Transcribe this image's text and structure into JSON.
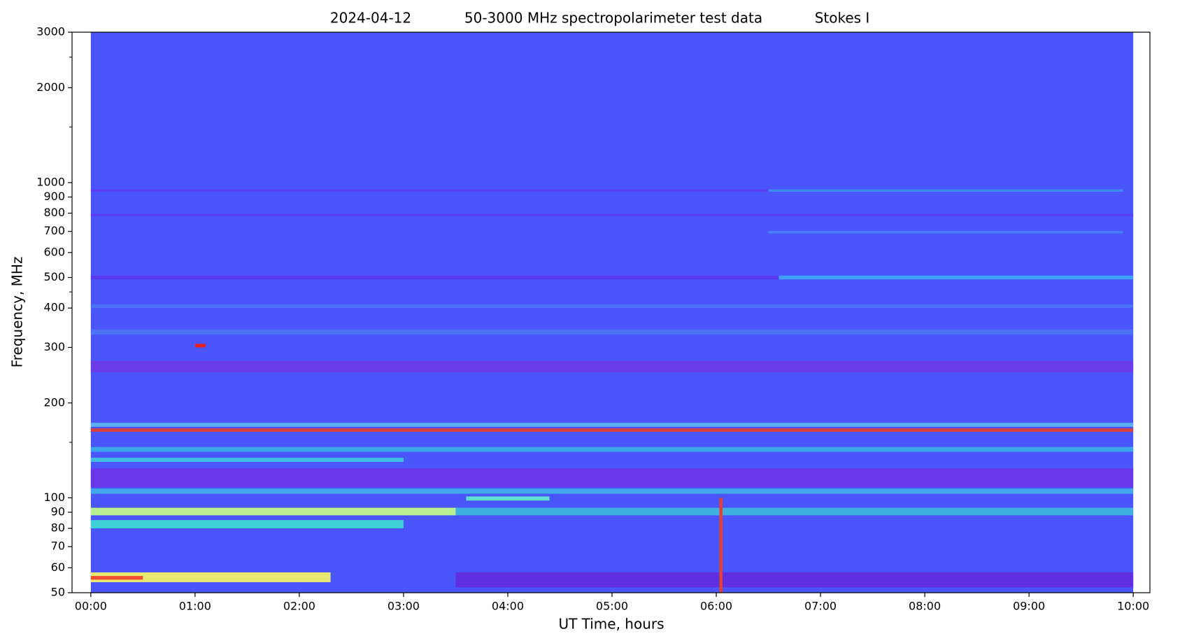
{
  "chart_data": {
    "type": "spectrogram",
    "title": [
      "2024-04-12",
      "50-3000 MHz spectropolarimeter test data",
      "Stokes I"
    ],
    "x_label": "UT Time, hours",
    "y_label": "Frequency, MHz",
    "yscale": "log",
    "xlim": [
      -0.18,
      10.16
    ],
    "ylim": [
      50,
      3000
    ],
    "xticks": [
      {
        "value": 0,
        "label": "00:00"
      },
      {
        "value": 1,
        "label": "01:00"
      },
      {
        "value": 2,
        "label": "02:00"
      },
      {
        "value": 3,
        "label": "03:00"
      },
      {
        "value": 4,
        "label": "04:00"
      },
      {
        "value": 5,
        "label": "05:00"
      },
      {
        "value": 6,
        "label": "06:00"
      },
      {
        "value": 7,
        "label": "07:00"
      },
      {
        "value": 8,
        "label": "08:00"
      },
      {
        "value": 9,
        "label": "09:00"
      },
      {
        "value": 10,
        "label": "10:00"
      }
    ],
    "yticks": [
      50,
      60,
      70,
      80,
      90,
      100,
      200,
      300,
      400,
      500,
      600,
      700,
      800,
      900,
      1000,
      2000,
      3000
    ],
    "yminorticks": [
      150,
      450,
      1500,
      2500
    ],
    "data_extent": {
      "t": [
        0,
        10
      ],
      "f": [
        50,
        3000
      ],
      "color": "#4a55fc"
    },
    "bands": [
      {
        "f": [
          935,
          952
        ],
        "t": [
          0,
          6.5
        ],
        "color": "#5c3cf2"
      },
      {
        "f": [
          935,
          952
        ],
        "t": [
          6.5,
          9.9
        ],
        "color": "#3f8cf0"
      },
      {
        "f": [
          782,
          796
        ],
        "t": [
          0,
          10
        ],
        "color": "#5a3ef5"
      },
      {
        "f": [
          690,
          702
        ],
        "t": [
          6.5,
          9.9
        ],
        "color": "#4a80f5"
      },
      {
        "f": [
          493,
          507
        ],
        "t": [
          0,
          6.6
        ],
        "color": "#5a3af0"
      },
      {
        "f": [
          493,
          507
        ],
        "t": [
          6.6,
          10
        ],
        "color": "#3fa0f5"
      },
      {
        "f": [
          400,
          410
        ],
        "t": [
          0,
          10
        ],
        "color": "#4a74f5"
      },
      {
        "f": [
          330,
          342
        ],
        "t": [
          0,
          10
        ],
        "color": "#4a74f5"
      },
      {
        "f": [
          250,
          272
        ],
        "t": [
          0,
          10
        ],
        "color": "#6a3ce8"
      },
      {
        "f": [
          168,
          173
        ],
        "t": [
          0,
          10
        ],
        "color": "#5ab0f0"
      },
      {
        "f": [
          162,
          166
        ],
        "t": [
          0,
          10
        ],
        "color": "#d8403a"
      },
      {
        "f": [
          140,
          145
        ],
        "t": [
          0,
          10
        ],
        "color": "#3aa6e8"
      },
      {
        "f": [
          130,
          134
        ],
        "t": [
          0,
          3
        ],
        "color": "#40c0e0"
      },
      {
        "f": [
          108,
          124
        ],
        "t": [
          0,
          10
        ],
        "color": "#6a36e8"
      },
      {
        "f": [
          103,
          107
        ],
        "t": [
          0,
          10
        ],
        "color": "#40a8e8"
      },
      {
        "f": [
          98,
          101
        ],
        "t": [
          3.6,
          4.4
        ],
        "color": "#60e0d0"
      },
      {
        "f": [
          88,
          93
        ],
        "t": [
          0,
          3.5
        ],
        "color": "#b8f090"
      },
      {
        "f": [
          88,
          93
        ],
        "t": [
          3.5,
          10
        ],
        "color": "#40b0e0"
      },
      {
        "f": [
          80,
          85
        ],
        "t": [
          0,
          3
        ],
        "color": "#40d0d8"
      },
      {
        "f": [
          54,
          58
        ],
        "t": [
          0,
          2.3
        ],
        "color": "#e8e870"
      },
      {
        "f": [
          55,
          56.5
        ],
        "t": [
          0,
          0.5
        ],
        "color": "#f05030"
      },
      {
        "f": [
          52,
          58
        ],
        "t": [
          3.5,
          10
        ],
        "color": "#6030e0"
      },
      {
        "f": [
          300,
          308
        ],
        "t": [
          1,
          1.1
        ],
        "color": "#e82020"
      },
      {
        "f": [
          50,
          100
        ],
        "t": [
          6.03,
          6.06
        ],
        "color": "#e84030"
      }
    ]
  }
}
